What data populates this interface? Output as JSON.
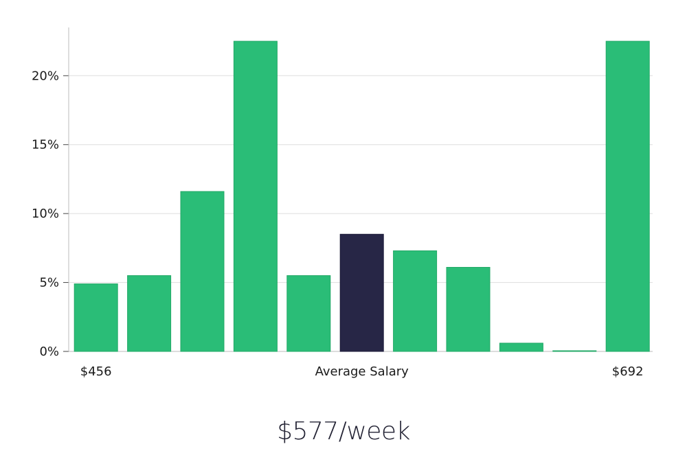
{
  "chart_data": {
    "type": "bar",
    "values": [
      4.9,
      5.5,
      11.6,
      22.5,
      5.5,
      8.5,
      7.3,
      6.1,
      0.6,
      0.05,
      22.5
    ],
    "highlight_index": 5,
    "ylim": [
      0,
      23.5
    ],
    "yticks": [
      0,
      5,
      10,
      15,
      20
    ],
    "ytick_labels": [
      "0%",
      "5%",
      "10%",
      "15%",
      "20%"
    ],
    "x_labels": {
      "left": "$456",
      "center": "Average Salary",
      "right": "$692"
    },
    "grid": true,
    "colors": {
      "bar": "#2abd77",
      "bar_edge": "#22a866",
      "highlight": "#272646",
      "highlight_edge": "#1b1a38",
      "grid": "#dddddd",
      "axis": "#bbbbbb"
    }
  },
  "summary": {
    "salary_text": "$577/week"
  }
}
